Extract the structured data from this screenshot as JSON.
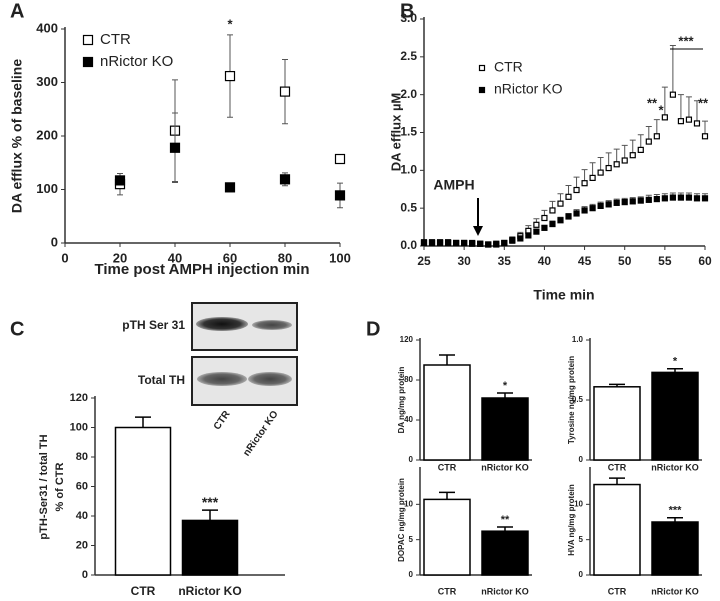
{
  "chart_data": [
    {
      "type": "scatter",
      "panel_label": "A",
      "ylabel": "DA efflux % of baseline",
      "xlabel": "Time post AMPH injection min",
      "x": [
        20,
        40,
        60,
        80,
        100
      ],
      "xlim": [
        0,
        100
      ],
      "xticks": [
        0,
        20,
        40,
        60,
        80,
        100
      ],
      "ylim": [
        0,
        400
      ],
      "yticks": [
        0,
        100,
        200,
        300,
        400
      ],
      "series": [
        {
          "name": "CTR",
          "color": "#000",
          "filled": false,
          "values": [
            110,
            210,
            312,
            283,
            157
          ],
          "errors": [
            20,
            95,
            77,
            60,
            5
          ]
        },
        {
          "name": "nRictor KO",
          "color": "#000",
          "filled": true,
          "values": [
            117,
            178,
            104,
            119,
            89
          ],
          "errors": [
            8,
            65,
            8,
            12,
            23
          ]
        }
      ],
      "annotations": [
        "*"
      ]
    },
    {
      "type": "scatter",
      "panel_label": "B",
      "ylabel": "DA efflux µM",
      "xlabel": "Time min",
      "x": [
        25,
        26,
        27,
        28,
        29,
        30,
        31,
        32,
        33,
        34,
        35,
        36,
        37,
        38,
        39,
        40,
        41,
        42,
        43,
        44,
        45,
        46,
        47,
        48,
        49,
        50,
        51,
        52,
        53,
        54,
        55,
        56,
        57,
        58,
        59,
        60
      ],
      "xlim": [
        25,
        60
      ],
      "xticks": [
        25,
        30,
        35,
        40,
        45,
        50,
        55,
        60
      ],
      "ylim": [
        0,
        3
      ],
      "yticks": [
        {
          "value": 0,
          "label": "0.0"
        },
        0.5,
        {
          "value": 1,
          "label": "1.0"
        },
        1.5,
        {
          "value": 2,
          "label": "2.0"
        },
        2.5,
        {
          "value": 3,
          "label": "3.0"
        }
      ],
      "series": [
        {
          "name": "CTR",
          "color": "#000",
          "filled": false,
          "values": [
            0.05,
            0.05,
            0.05,
            0.05,
            0.04,
            0.04,
            0.04,
            0.03,
            0.02,
            0.02,
            0.04,
            0.08,
            0.13,
            0.2,
            0.28,
            0.37,
            0.47,
            0.56,
            0.65,
            0.74,
            0.83,
            0.9,
            0.97,
            1.03,
            1.08,
            1.13,
            1.2,
            1.27,
            1.38,
            1.45,
            1.7,
            2.0,
            1.65,
            1.67,
            1.62,
            1.45
          ],
          "errors": [
            0.02,
            0.02,
            0.02,
            0.02,
            0.02,
            0.02,
            0.02,
            0.02,
            0.02,
            0.02,
            0.02,
            0.04,
            0.05,
            0.07,
            0.08,
            0.1,
            0.12,
            0.13,
            0.15,
            0.17,
            0.18,
            0.2,
            0.2,
            0.2,
            0.2,
            0.2,
            0.2,
            0.2,
            0.2,
            0.22,
            0.4,
            0.65,
            0.35,
            0.3,
            0.3,
            0.2
          ]
        },
        {
          "name": "nRictor KO",
          "color": "#000",
          "filled": true,
          "values": [
            0.04,
            0.04,
            0.04,
            0.04,
            0.04,
            0.04,
            0.03,
            0.03,
            0.02,
            0.03,
            0.04,
            0.07,
            0.1,
            0.14,
            0.19,
            0.24,
            0.29,
            0.34,
            0.39,
            0.43,
            0.47,
            0.5,
            0.53,
            0.55,
            0.57,
            0.58,
            0.59,
            0.6,
            0.61,
            0.62,
            0.63,
            0.64,
            0.64,
            0.64,
            0.63,
            0.63
          ],
          "errors": [
            0.01,
            0.01,
            0.01,
            0.01,
            0.01,
            0.01,
            0.01,
            0.01,
            0.01,
            0.01,
            0.01,
            0.02,
            0.02,
            0.03,
            0.03,
            0.03,
            0.04,
            0.04,
            0.04,
            0.05,
            0.05,
            0.05,
            0.05,
            0.05,
            0.05,
            0.05,
            0.05,
            0.05,
            0.06,
            0.06,
            0.06,
            0.06,
            0.06,
            0.06,
            0.06,
            0.06
          ]
        }
      ],
      "annotations": [
        "AMPH",
        "**",
        "*",
        "***",
        "**"
      ]
    },
    {
      "type": "bar",
      "panel_label": "C",
      "ylabel": [
        "pTH-Ser31 / total TH",
        "% of CTR"
      ],
      "blot_rows": [
        "pTH Ser 31",
        "Total TH"
      ],
      "blot_columns": [
        "CTR",
        "nRictor KO"
      ],
      "categories": [
        "CTR",
        "nRictor KO"
      ],
      "values": [
        100,
        37
      ],
      "errors": [
        7,
        7
      ],
      "colors": [
        "#fff",
        "#000"
      ],
      "ylim": [
        0,
        120
      ],
      "yticks": [
        0,
        20,
        40,
        60,
        80,
        100,
        120
      ],
      "annotations": [
        "***"
      ]
    },
    {
      "type": "bar",
      "panel_label": "D",
      "ylabel": "DA ng/mg protein",
      "categories": [
        "CTR",
        "nRictor KO"
      ],
      "values": [
        95,
        62
      ],
      "errors": [
        10,
        5
      ],
      "colors": [
        "#fff",
        "#000"
      ],
      "ylim": [
        0,
        120
      ],
      "yticks": [
        0,
        40,
        80,
        120
      ],
      "annotations": [
        "*"
      ]
    },
    {
      "type": "bar",
      "ylabel": "Tyrosine ng/mg protein",
      "categories": [
        "CTR",
        "nRictor KO"
      ],
      "values": [
        0.61,
        0.73
      ],
      "errors": [
        0.02,
        0.03
      ],
      "colors": [
        "#fff",
        "#000"
      ],
      "ylim": [
        0,
        1
      ],
      "yticks": [
        0,
        0.5,
        {
          "value": 1,
          "label": "1.0"
        }
      ],
      "annotations": [
        "*"
      ]
    },
    {
      "type": "bar",
      "ylabel": "DOPAC ng/mg protein",
      "categories": [
        "CTR",
        "nRictor KO"
      ],
      "values": [
        10.7,
        6.2
      ],
      "errors": [
        1,
        0.6
      ],
      "colors": [
        "#fff",
        "#000"
      ],
      "ylim": [
        0,
        15
      ],
      "yticks": [
        0,
        5,
        10
      ],
      "annotations": [
        "**"
      ]
    },
    {
      "type": "bar",
      "ylabel": "HVA ng/mg protein",
      "categories": [
        "CTR",
        "nRictor KO"
      ],
      "values": [
        12.8,
        7.5
      ],
      "errors": [
        0.9,
        0.6
      ],
      "colors": [
        "#fff",
        "#000"
      ],
      "ylim": [
        0,
        15
      ],
      "yticks": [
        0,
        5,
        10
      ],
      "annotations": [
        "***"
      ]
    }
  ]
}
